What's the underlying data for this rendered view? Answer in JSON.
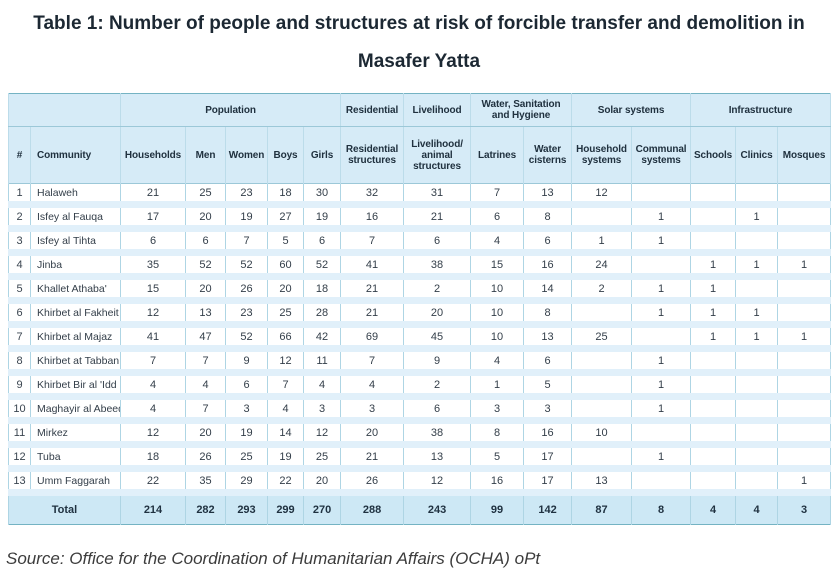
{
  "title": "Table 1: Number of people and structures at risk of forcible transfer and demolition in Masafer Yatta",
  "source": "Source: Office for the Coordination of Humanitarian Affairs (OCHA) oPt",
  "colors": {
    "header_bg": "#d6ebf7",
    "total_bg": "#cde8f5",
    "row_band": "#e1f0fa",
    "border_outer": "#74b3c3",
    "border_inner": "#aed5e4"
  },
  "table": {
    "group_headers": [
      {
        "label": "",
        "span": 2
      },
      {
        "label": "Population",
        "span": 5
      },
      {
        "label": "Residential",
        "span": 1
      },
      {
        "label": "Livelihood",
        "span": 1
      },
      {
        "label": "Water, Sanitation and Hygiene",
        "span": 2
      },
      {
        "label": "Solar systems",
        "span": 2
      },
      {
        "label": "Infrastructure",
        "span": 3
      }
    ],
    "columns": [
      "#",
      "Community",
      "Households",
      "Men",
      "Women",
      "Boys",
      "Girls",
      "Residential structures",
      "Livelihood/ animal structures",
      "Latrines",
      "Water cisterns",
      "Household systems",
      "Communal systems",
      "Schools",
      "Clinics",
      "Mosques"
    ],
    "rows": [
      {
        "num": "1",
        "community": "Halaweh",
        "values": [
          21,
          25,
          23,
          18,
          30,
          32,
          31,
          7,
          13,
          12,
          "",
          "",
          "",
          ""
        ]
      },
      {
        "num": "2",
        "community": "Isfey al Fauqa",
        "values": [
          17,
          20,
          19,
          27,
          19,
          16,
          21,
          6,
          8,
          "",
          1,
          "",
          1,
          ""
        ]
      },
      {
        "num": "3",
        "community": "Isfey al Tihta",
        "values": [
          6,
          6,
          7,
          5,
          6,
          7,
          6,
          4,
          6,
          1,
          1,
          "",
          "",
          ""
        ]
      },
      {
        "num": "4",
        "community": "Jinba",
        "values": [
          35,
          52,
          52,
          60,
          52,
          41,
          38,
          15,
          16,
          24,
          "",
          1,
          1,
          1
        ]
      },
      {
        "num": "5",
        "community": "Khallet Athaba'",
        "values": [
          15,
          20,
          26,
          20,
          18,
          21,
          2,
          10,
          14,
          2,
          1,
          1,
          "",
          ""
        ]
      },
      {
        "num": "6",
        "community": "Khirbet al Fakheit",
        "values": [
          12,
          13,
          23,
          25,
          28,
          21,
          20,
          10,
          8,
          "",
          1,
          1,
          1,
          ""
        ]
      },
      {
        "num": "7",
        "community": "Khirbet al Majaz",
        "values": [
          41,
          47,
          52,
          66,
          42,
          69,
          45,
          10,
          13,
          25,
          "",
          1,
          1,
          1
        ]
      },
      {
        "num": "8",
        "community": "Khirbet at Tabban",
        "values": [
          7,
          7,
          9,
          12,
          11,
          7,
          9,
          4,
          6,
          "",
          1,
          "",
          "",
          ""
        ]
      },
      {
        "num": "9",
        "community": "Khirbet Bir al 'Idd",
        "values": [
          4,
          4,
          6,
          7,
          4,
          4,
          2,
          1,
          5,
          "",
          1,
          "",
          "",
          ""
        ]
      },
      {
        "num": "10",
        "community": "Maghayir al Abeed",
        "values": [
          4,
          7,
          3,
          4,
          3,
          3,
          6,
          3,
          3,
          "",
          1,
          "",
          "",
          ""
        ]
      },
      {
        "num": "11",
        "community": "Mirkez",
        "values": [
          12,
          20,
          19,
          14,
          12,
          20,
          38,
          8,
          16,
          10,
          "",
          "",
          "",
          ""
        ]
      },
      {
        "num": "12",
        "community": "Tuba",
        "values": [
          18,
          26,
          25,
          19,
          25,
          21,
          13,
          5,
          17,
          "",
          1,
          "",
          "",
          ""
        ]
      },
      {
        "num": "13",
        "community": "Umm Faggarah",
        "values": [
          22,
          35,
          29,
          22,
          20,
          26,
          12,
          16,
          17,
          13,
          "",
          "",
          "",
          1
        ]
      }
    ],
    "total_label": "Total",
    "total_values": [
      214,
      282,
      293,
      299,
      270,
      288,
      243,
      99,
      142,
      87,
      8,
      4,
      4,
      3
    ]
  }
}
